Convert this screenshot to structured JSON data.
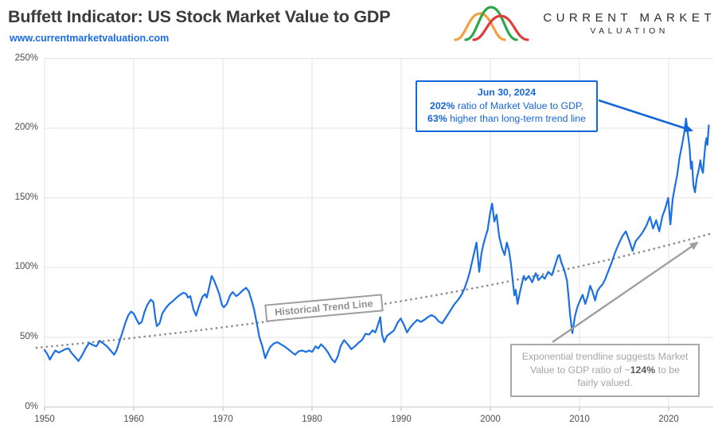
{
  "header": {
    "title": "Buffett Indicator: US Stock Market Value to GDP",
    "url": "www.currentmarketvaluation.com"
  },
  "logo": {
    "line1": "CURRENT MARKET",
    "line2": "VALUATION",
    "curve_colors": {
      "green": "#2ea64c",
      "orange": "#f0a33f",
      "red": "#e23d3d"
    }
  },
  "colors": {
    "accent_blue": "#1566d8",
    "series_blue": "#1c70e4",
    "link_blue": "#1a6ce8",
    "trend_gray": "#8f8f8f",
    "grid_gray": "#e3e3e3",
    "axis_gray": "#c9c9c9",
    "tick_label_gray": "#4d4d4d",
    "callout_gray_border": "#a9a9a9",
    "callout_gray_text": "#a5a5a5",
    "title_color": "#3b3b3b"
  },
  "callout_current": {
    "title": "Jun 30, 2024",
    "line2_bold": "202%",
    "line2_rest": " ratio of Market Value to GDP,",
    "line3_bold": "63%",
    "line3_rest": " higher than long-term trend line"
  },
  "callout_trend": {
    "text_pre": "Exponential trendline suggests Market Value to GDP ratio of ~",
    "bold": "124%",
    "text_post": " to be fairly valued."
  },
  "trend_label": "Historical Trend Line",
  "chart_data": {
    "type": "line",
    "title": "Buffett Indicator: US Stock Market Value to GDP",
    "xlabel": "",
    "ylabel": "",
    "grid": true,
    "legend": "none",
    "x_axis": {
      "range": [
        1950,
        2025
      ],
      "ticks": [
        1950,
        1960,
        1970,
        1980,
        1990,
        2000,
        2010,
        2020
      ]
    },
    "y_axis": {
      "range_pct": [
        0,
        250
      ],
      "ticks_pct": [
        0,
        50,
        100,
        150,
        200,
        250
      ],
      "unit": "%"
    },
    "latest_point": {
      "date": "Jun 30, 2024",
      "value_pct": 202,
      "above_trend_pct": 63
    },
    "trendline": {
      "name": "Exponential long-term trend",
      "style": "dotted",
      "color": "#8f8f8f",
      "start_year": 1949.1,
      "start_pct": 42.5,
      "end_year": 2024.9,
      "end_pct": 124.6,
      "fair_value_pct": 124
    },
    "series": [
      {
        "name": "Market Value to GDP",
        "color": "#1c70e4",
        "points": [
          [
            1950.0,
            41
          ],
          [
            1950.3,
            38
          ],
          [
            1950.6,
            34
          ],
          [
            1950.9,
            37.5
          ],
          [
            1951.2,
            40.5
          ],
          [
            1951.6,
            39
          ],
          [
            1951.9,
            40
          ],
          [
            1952.3,
            41.5
          ],
          [
            1952.7,
            42
          ],
          [
            1953.0,
            39
          ],
          [
            1953.4,
            36
          ],
          [
            1953.8,
            33
          ],
          [
            1954.2,
            37
          ],
          [
            1954.6,
            42
          ],
          [
            1955.0,
            46
          ],
          [
            1955.4,
            44.5
          ],
          [
            1955.8,
            43.5
          ],
          [
            1956.2,
            47.5
          ],
          [
            1956.6,
            45.5
          ],
          [
            1957.0,
            43.5
          ],
          [
            1957.4,
            40.5
          ],
          [
            1957.8,
            37.5
          ],
          [
            1958.1,
            41
          ],
          [
            1958.4,
            47
          ],
          [
            1958.8,
            55
          ],
          [
            1959.1,
            61
          ],
          [
            1959.4,
            66
          ],
          [
            1959.7,
            68.5
          ],
          [
            1960.0,
            67
          ],
          [
            1960.3,
            63
          ],
          [
            1960.6,
            59.5
          ],
          [
            1960.9,
            61
          ],
          [
            1961.2,
            68
          ],
          [
            1961.5,
            73
          ],
          [
            1961.9,
            77
          ],
          [
            1962.2,
            75.5
          ],
          [
            1962.45,
            63
          ],
          [
            1962.6,
            58
          ],
          [
            1962.9,
            60
          ],
          [
            1963.2,
            67
          ],
          [
            1963.6,
            71
          ],
          [
            1964.0,
            74
          ],
          [
            1964.4,
            76
          ],
          [
            1964.8,
            78.5
          ],
          [
            1965.2,
            80.5
          ],
          [
            1965.6,
            82
          ],
          [
            1965.9,
            81
          ],
          [
            1966.1,
            78.5
          ],
          [
            1966.35,
            79.5
          ],
          [
            1966.7,
            70
          ],
          [
            1967.0,
            65.5
          ],
          [
            1967.3,
            72
          ],
          [
            1967.7,
            79
          ],
          [
            1968.0,
            81
          ],
          [
            1968.2,
            78.5
          ],
          [
            1968.5,
            87
          ],
          [
            1968.75,
            94
          ],
          [
            1969.0,
            91
          ],
          [
            1969.3,
            86
          ],
          [
            1969.6,
            81
          ],
          [
            1969.9,
            73
          ],
          [
            1970.1,
            71.5
          ],
          [
            1970.45,
            74
          ],
          [
            1970.8,
            80
          ],
          [
            1971.1,
            82.5
          ],
          [
            1971.5,
            79.5
          ],
          [
            1971.8,
            81
          ],
          [
            1972.2,
            83.5
          ],
          [
            1972.6,
            85.5
          ],
          [
            1972.9,
            83
          ],
          [
            1973.2,
            77
          ],
          [
            1973.5,
            70
          ],
          [
            1973.8,
            60
          ],
          [
            1974.1,
            50
          ],
          [
            1974.4,
            44
          ],
          [
            1974.75,
            35
          ],
          [
            1975.0,
            39
          ],
          [
            1975.3,
            43
          ],
          [
            1975.7,
            45.5
          ],
          [
            1976.1,
            46.5
          ],
          [
            1976.5,
            45
          ],
          [
            1976.9,
            43.5
          ],
          [
            1977.3,
            41.5
          ],
          [
            1977.7,
            39.5
          ],
          [
            1978.1,
            37.5
          ],
          [
            1978.5,
            40
          ],
          [
            1978.9,
            40.5
          ],
          [
            1979.3,
            39.5
          ],
          [
            1979.7,
            40.5
          ],
          [
            1980.0,
            39.5
          ],
          [
            1980.4,
            43.5
          ],
          [
            1980.7,
            42
          ],
          [
            1981.0,
            45
          ],
          [
            1981.4,
            42.5
          ],
          [
            1981.8,
            39
          ],
          [
            1982.2,
            34.5
          ],
          [
            1982.55,
            32
          ],
          [
            1982.9,
            36.5
          ],
          [
            1983.2,
            43.5
          ],
          [
            1983.6,
            48
          ],
          [
            1984.0,
            45
          ],
          [
            1984.4,
            41.5
          ],
          [
            1984.8,
            43.5
          ],
          [
            1985.2,
            46
          ],
          [
            1985.6,
            48
          ],
          [
            1986.0,
            52.5
          ],
          [
            1986.4,
            52
          ],
          [
            1986.8,
            55
          ],
          [
            1987.1,
            53.5
          ],
          [
            1987.45,
            60
          ],
          [
            1987.65,
            64.5
          ],
          [
            1987.85,
            52
          ],
          [
            1988.1,
            46.5
          ],
          [
            1988.4,
            51
          ],
          [
            1988.8,
            53
          ],
          [
            1989.2,
            55
          ],
          [
            1989.6,
            60.5
          ],
          [
            1989.95,
            63.5
          ],
          [
            1990.3,
            59
          ],
          [
            1990.65,
            53.5
          ],
          [
            1991.0,
            57
          ],
          [
            1991.4,
            60
          ],
          [
            1991.8,
            62.5
          ],
          [
            1992.2,
            61
          ],
          [
            1992.6,
            62.5
          ],
          [
            1993.0,
            64.5
          ],
          [
            1993.4,
            66
          ],
          [
            1993.8,
            64.5
          ],
          [
            1994.2,
            61.5
          ],
          [
            1994.6,
            60
          ],
          [
            1995.0,
            64
          ],
          [
            1995.4,
            68
          ],
          [
            1995.7,
            71
          ],
          [
            1996.0,
            74
          ],
          [
            1996.4,
            77
          ],
          [
            1996.8,
            81
          ],
          [
            1997.1,
            85
          ],
          [
            1997.4,
            90.5
          ],
          [
            1997.7,
            97
          ],
          [
            1997.95,
            104
          ],
          [
            1998.2,
            111
          ],
          [
            1998.45,
            118
          ],
          [
            1998.75,
            97
          ],
          [
            1999.0,
            110
          ],
          [
            1999.2,
            116
          ],
          [
            1999.45,
            122
          ],
          [
            1999.7,
            127
          ],
          [
            1999.95,
            138
          ],
          [
            2000.2,
            146
          ],
          [
            2000.45,
            133
          ],
          [
            2000.7,
            138
          ],
          [
            2001.0,
            122
          ],
          [
            2001.3,
            114
          ],
          [
            2001.6,
            109
          ],
          [
            2001.85,
            118
          ],
          [
            2002.1,
            112
          ],
          [
            2002.3,
            103
          ],
          [
            2002.55,
            88
          ],
          [
            2002.7,
            80
          ],
          [
            2002.85,
            84
          ],
          [
            2003.05,
            74
          ],
          [
            2003.3,
            82
          ],
          [
            2003.55,
            89
          ],
          [
            2003.75,
            94
          ],
          [
            2003.95,
            91
          ],
          [
            2004.3,
            94
          ],
          [
            2004.7,
            89.5
          ],
          [
            2005.1,
            96
          ],
          [
            2005.4,
            91
          ],
          [
            2005.8,
            94
          ],
          [
            2006.1,
            92
          ],
          [
            2006.5,
            97
          ],
          [
            2006.9,
            94.5
          ],
          [
            2007.3,
            102.5
          ],
          [
            2007.6,
            108.5
          ],
          [
            2007.75,
            109
          ],
          [
            2007.95,
            104
          ],
          [
            2008.3,
            98
          ],
          [
            2008.6,
            90.5
          ],
          [
            2008.8,
            77
          ],
          [
            2008.95,
            66
          ],
          [
            2009.2,
            53
          ],
          [
            2009.5,
            65.5
          ],
          [
            2009.8,
            72.5
          ],
          [
            2010.1,
            77
          ],
          [
            2010.35,
            80.5
          ],
          [
            2010.65,
            74
          ],
          [
            2010.95,
            80
          ],
          [
            2011.2,
            87
          ],
          [
            2011.45,
            83
          ],
          [
            2011.75,
            76.5
          ],
          [
            2012.0,
            83
          ],
          [
            2012.3,
            86
          ],
          [
            2012.6,
            88
          ],
          [
            2012.9,
            92
          ],
          [
            2013.2,
            97
          ],
          [
            2013.6,
            103.5
          ],
          [
            2014.0,
            111
          ],
          [
            2014.4,
            117
          ],
          [
            2014.8,
            122.5
          ],
          [
            2015.2,
            126
          ],
          [
            2015.6,
            119
          ],
          [
            2015.95,
            112
          ],
          [
            2016.3,
            119
          ],
          [
            2016.7,
            122
          ],
          [
            2017.1,
            125.5
          ],
          [
            2017.5,
            130
          ],
          [
            2017.9,
            136.5
          ],
          [
            2018.25,
            128
          ],
          [
            2018.6,
            134
          ],
          [
            2018.95,
            126
          ],
          [
            2019.3,
            137
          ],
          [
            2019.6,
            142
          ],
          [
            2019.95,
            150
          ],
          [
            2020.2,
            131
          ],
          [
            2020.45,
            149
          ],
          [
            2020.7,
            158
          ],
          [
            2020.95,
            166
          ],
          [
            2021.2,
            178
          ],
          [
            2021.5,
            188
          ],
          [
            2021.75,
            197
          ],
          [
            2021.95,
            207
          ],
          [
            2022.15,
            196
          ],
          [
            2022.35,
            186
          ],
          [
            2022.5,
            171
          ],
          [
            2022.62,
            176
          ],
          [
            2022.78,
            159
          ],
          [
            2022.95,
            154
          ],
          [
            2023.15,
            164
          ],
          [
            2023.4,
            171
          ],
          [
            2023.55,
            177
          ],
          [
            2023.7,
            171
          ],
          [
            2023.85,
            168
          ],
          [
            2024.0,
            180
          ],
          [
            2024.15,
            190
          ],
          [
            2024.25,
            193
          ],
          [
            2024.35,
            188
          ],
          [
            2024.5,
            202
          ]
        ]
      }
    ]
  }
}
